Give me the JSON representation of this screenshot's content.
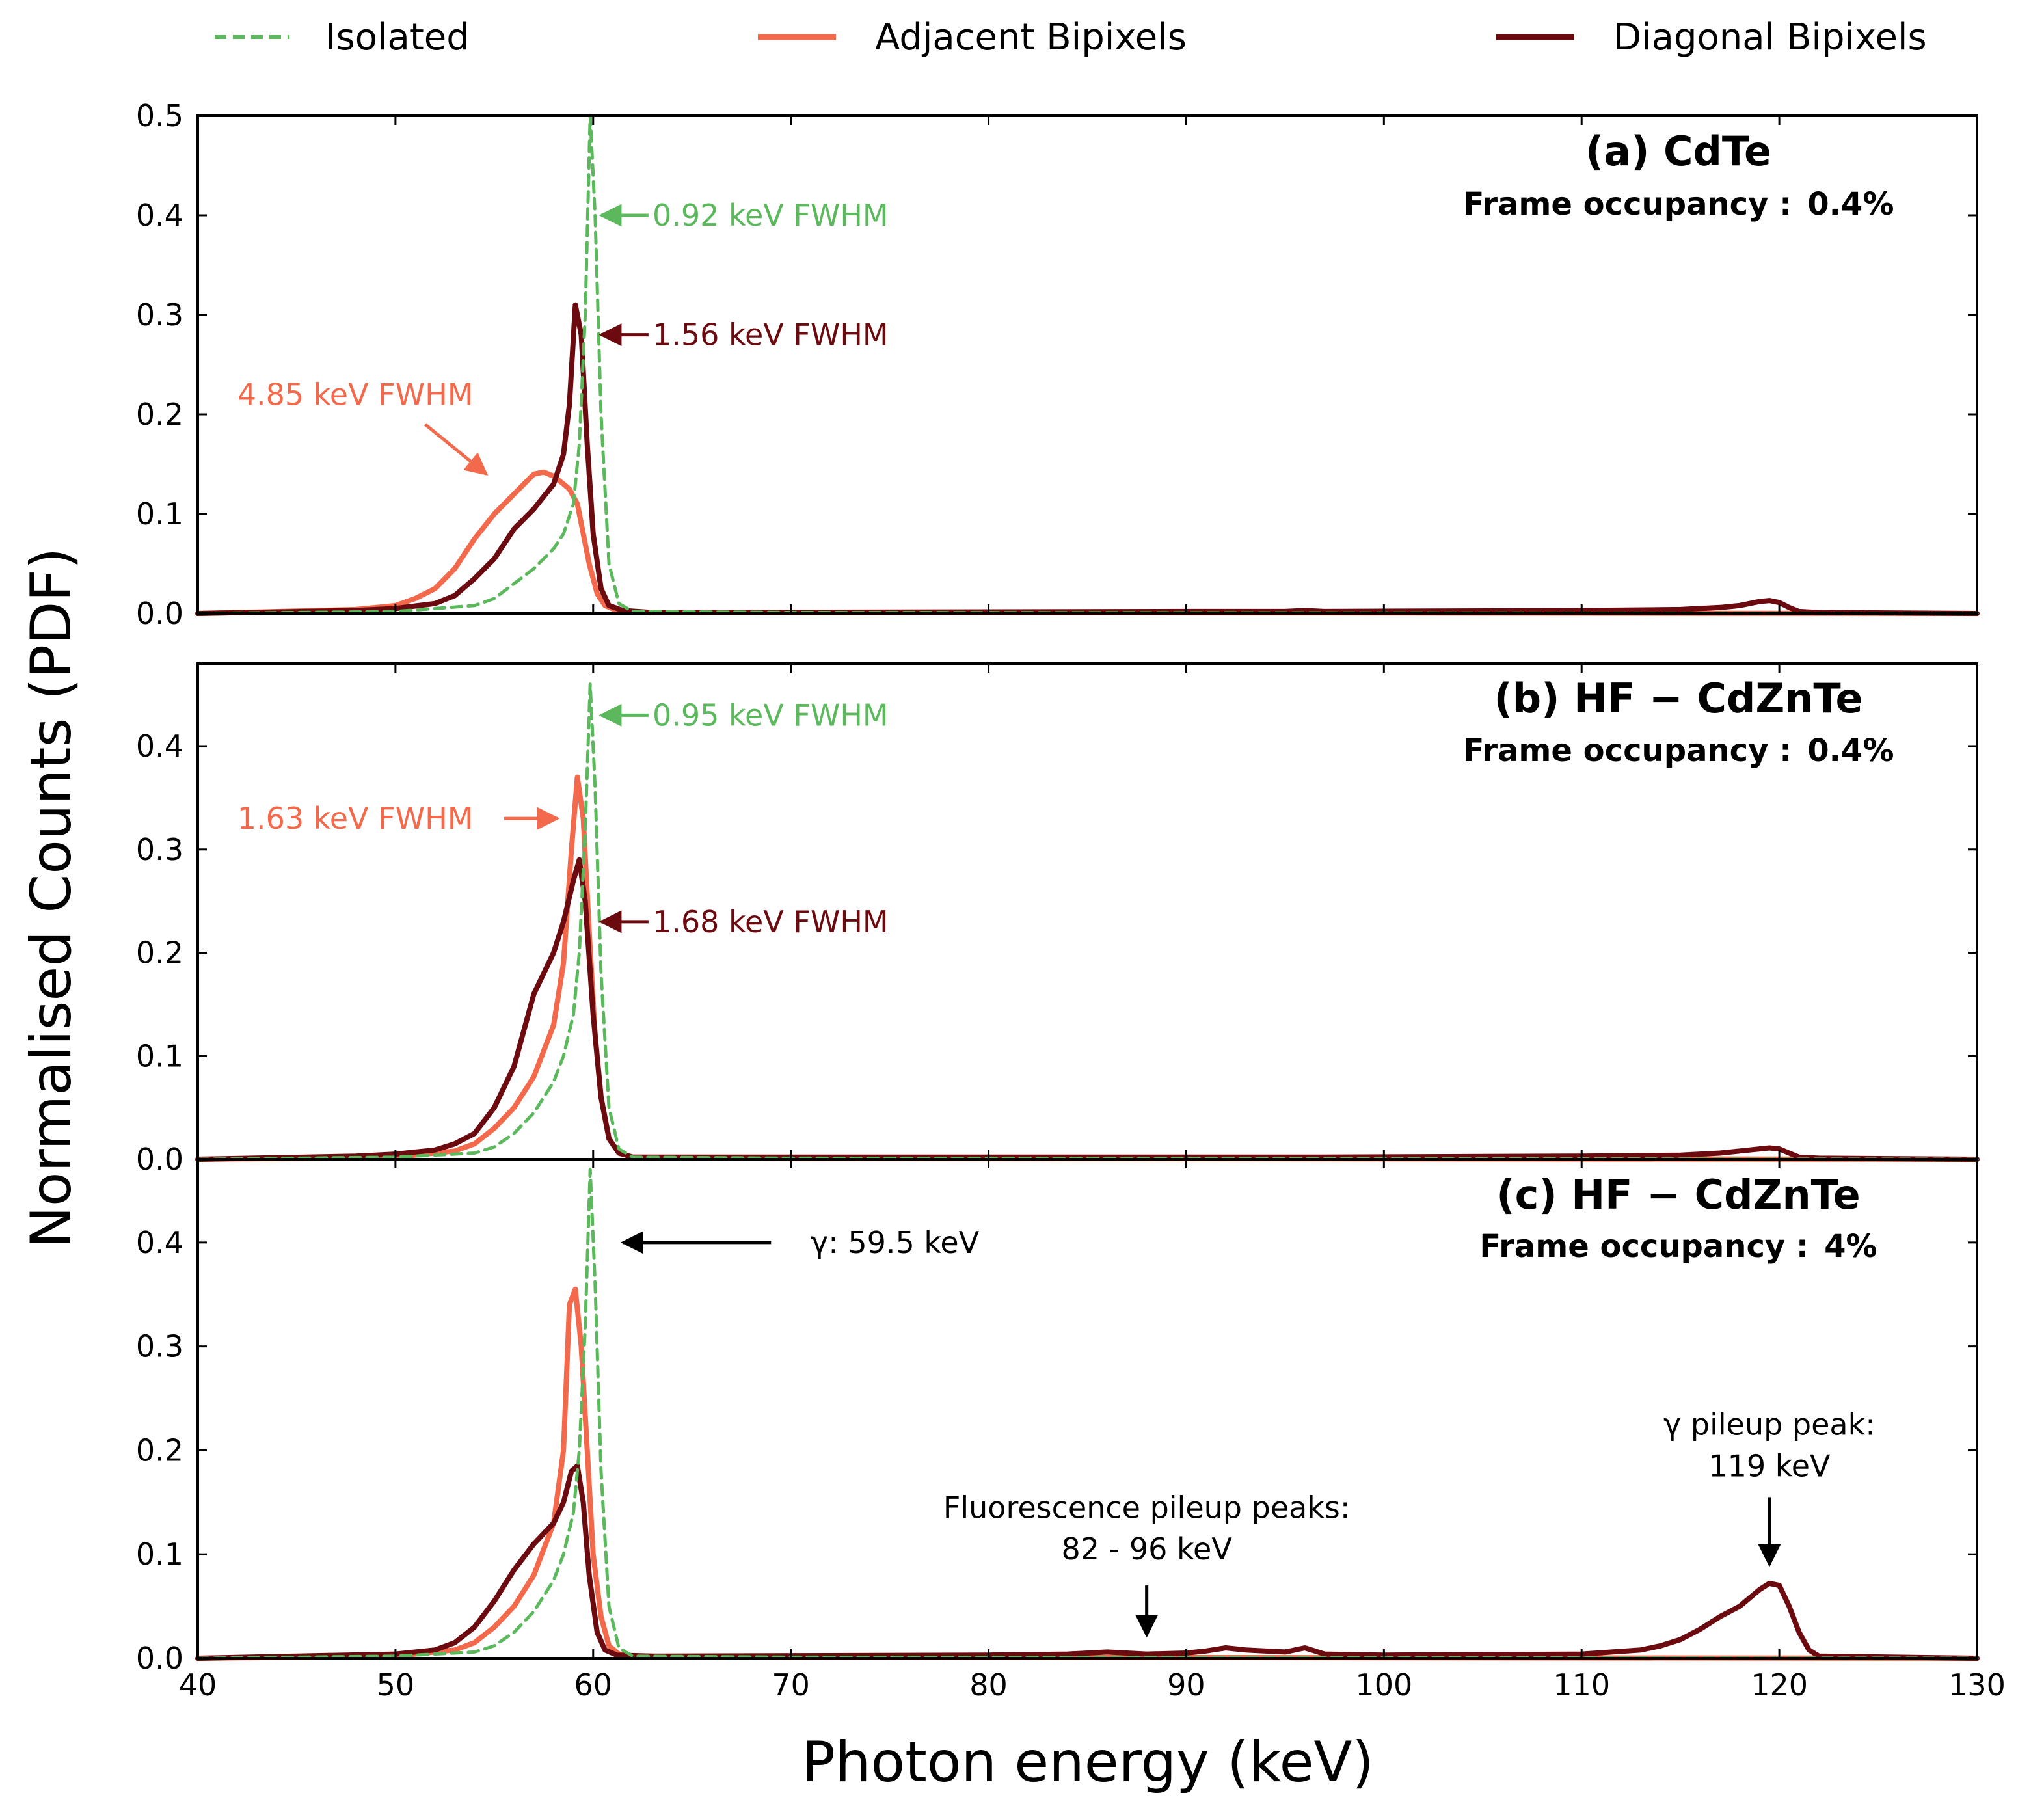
{
  "chart_data": {
    "type": "line",
    "xlabel": "Photon energy (keV)",
    "ylabel": "Normalised Counts (PDF)",
    "xlim": [
      40,
      130
    ],
    "x_ticks": [
      40,
      50,
      60,
      70,
      80,
      90,
      100,
      110,
      120,
      130
    ],
    "legend": {
      "placement": "top",
      "entries": [
        {
          "label": "Isolated",
          "color": "#5cb85c",
          "style": "dashed"
        },
        {
          "label": "Adjacent Bipixels",
          "color": "#f26a4b",
          "style": "solid"
        },
        {
          "label": "Diagonal Bipixels",
          "color": "#6b0a0f",
          "style": "solid"
        }
      ]
    },
    "panels": [
      {
        "id": "a",
        "title": "(a) CdTe",
        "occupancy_label": "Frame occupancy :",
        "occupancy_value": "0.4%",
        "ylim": [
          0,
          0.5
        ],
        "y_ticks": [
          "0.0",
          "0.1",
          "0.2",
          "0.3",
          "0.4",
          "0.5"
        ],
        "series": [
          {
            "name": "Isolated",
            "x": [
              40,
              50,
              54,
              55,
              56,
              57,
              58,
              58.5,
              59,
              59.3,
              59.6,
              59.85,
              60.1,
              60.4,
              60.8,
              61.3,
              62,
              70,
              130
            ],
            "y": [
              0,
              0.002,
              0.008,
              0.015,
              0.03,
              0.045,
              0.065,
              0.08,
              0.11,
              0.17,
              0.3,
              0.5,
              0.4,
              0.2,
              0.05,
              0.01,
              0.002,
              0.001,
              0
            ]
          },
          {
            "name": "Adjacent Bipixels",
            "x": [
              40,
              48,
              50,
              51,
              52,
              53,
              54,
              55,
              56,
              56.5,
              57,
              57.5,
              58,
              58.5,
              58.8,
              59.2,
              59.5,
              59.8,
              60.2,
              60.6,
              61.2,
              63,
              70,
              130
            ],
            "y": [
              0,
              0.004,
              0.008,
              0.015,
              0.025,
              0.045,
              0.075,
              0.1,
              0.12,
              0.13,
              0.14,
              0.142,
              0.138,
              0.13,
              0.125,
              0.11,
              0.08,
              0.05,
              0.02,
              0.008,
              0.003,
              0.001,
              0.001,
              0
            ]
          },
          {
            "name": "Diagonal Bipixels",
            "x": [
              40,
              48,
              50,
              52,
              53,
              54,
              55,
              56,
              57,
              58,
              58.5,
              58.8,
              59.1,
              59.4,
              59.7,
              60,
              60.4,
              60.8,
              61.5,
              63,
              90,
              95,
              96,
              97,
              110,
              115,
              117,
              118,
              119,
              119.5,
              120,
              120.5,
              121,
              122,
              130
            ],
            "y": [
              0,
              0.003,
              0.005,
              0.01,
              0.018,
              0.035,
              0.055,
              0.085,
              0.105,
              0.13,
              0.16,
              0.21,
              0.31,
              0.28,
              0.17,
              0.08,
              0.025,
              0.008,
              0.003,
              0.001,
              0.002,
              0.002,
              0.003,
              0.002,
              0.003,
              0.004,
              0.006,
              0.008,
              0.012,
              0.013,
              0.011,
              0.006,
              0.002,
              0.001,
              0
            ]
          }
        ],
        "annotations": [
          {
            "text": "0.92 keV FWHM",
            "color": "#5cb85c",
            "text_x": 63,
            "text_y": 0.4,
            "arrow_from": [
              62.8,
              0.4
            ],
            "arrow_to": [
              60.4,
              0.4
            ]
          },
          {
            "text": "1.56 keV FWHM",
            "color": "#6b0a0f",
            "text_x": 63,
            "text_y": 0.28,
            "arrow_from": [
              62.8,
              0.28
            ],
            "arrow_to": [
              60.4,
              0.28
            ]
          },
          {
            "text": "4.85 keV FWHM",
            "color": "#f26a4b",
            "text_x": 42,
            "text_y": 0.22,
            "arrow_from": [
              51.5,
              0.19
            ],
            "arrow_to": [
              54.6,
              0.14
            ]
          }
        ]
      },
      {
        "id": "b",
        "title": "(b) HF − CdZnTe",
        "occupancy_label": "Frame occupancy :",
        "occupancy_value": "0.4%",
        "ylim": [
          0,
          0.48
        ],
        "y_ticks": [
          "0.0",
          "0.1",
          "0.2",
          "0.3",
          "0.4"
        ],
        "series": [
          {
            "name": "Isolated",
            "x": [
              40,
              50,
              54,
              55,
              56,
              57,
              58,
              58.5,
              59,
              59.3,
              59.6,
              59.85,
              60.1,
              60.4,
              60.8,
              61.3,
              62,
              70,
              130
            ],
            "y": [
              0,
              0.002,
              0.006,
              0.012,
              0.025,
              0.045,
              0.075,
              0.1,
              0.14,
              0.2,
              0.32,
              0.46,
              0.36,
              0.18,
              0.05,
              0.01,
              0.002,
              0.001,
              0
            ]
          },
          {
            "name": "Adjacent Bipixels",
            "x": [
              40,
              50,
              53,
              54,
              55,
              56,
              57,
              58,
              58.5,
              58.9,
              59.2,
              59.5,
              59.8,
              60.1,
              60.4,
              60.8,
              61.3,
              62,
              70,
              130
            ],
            "y": [
              0,
              0.002,
              0.008,
              0.015,
              0.03,
              0.05,
              0.08,
              0.13,
              0.19,
              0.3,
              0.37,
              0.33,
              0.22,
              0.12,
              0.06,
              0.02,
              0.006,
              0.002,
              0.001,
              0
            ]
          },
          {
            "name": "Diagonal Bipixels",
            "x": [
              40,
              48,
              50,
              52,
              53,
              54,
              55,
              56,
              57,
              58,
              58.5,
              59,
              59.3,
              59.6,
              60,
              60.4,
              60.8,
              61.3,
              62,
              90,
              96,
              110,
              115,
              117,
              118,
              119,
              119.5,
              120,
              120.5,
              121,
              122,
              130
            ],
            "y": [
              0,
              0.003,
              0.005,
              0.009,
              0.015,
              0.025,
              0.05,
              0.09,
              0.16,
              0.2,
              0.23,
              0.27,
              0.29,
              0.25,
              0.14,
              0.06,
              0.02,
              0.006,
              0.002,
              0.002,
              0.002,
              0.003,
              0.004,
              0.006,
              0.008,
              0.01,
              0.011,
              0.01,
              0.006,
              0.002,
              0.001,
              0
            ]
          }
        ],
        "annotations": [
          {
            "text": "0.95 keV FWHM",
            "color": "#5cb85c",
            "text_x": 63,
            "text_y": 0.43,
            "arrow_from": [
              62.8,
              0.43
            ],
            "arrow_to": [
              60.4,
              0.43
            ]
          },
          {
            "text": "1.63 keV FWHM",
            "color": "#f26a4b",
            "text_x": 42,
            "text_y": 0.33,
            "arrow_from": [
              55.5,
              0.33
            ],
            "arrow_to": [
              58.2,
              0.33
            ]
          },
          {
            "text": "1.68 keV FWHM",
            "color": "#6b0a0f",
            "text_x": 63,
            "text_y": 0.23,
            "arrow_from": [
              62.8,
              0.23
            ],
            "arrow_to": [
              60.4,
              0.23
            ]
          }
        ]
      },
      {
        "id": "c",
        "title": "(c) HF − CdZnTe",
        "occupancy_label": "Frame occupancy :",
        "occupancy_value": "4%",
        "ylim": [
          0,
          0.48
        ],
        "y_ticks": [
          "0.0",
          "0.1",
          "0.2",
          "0.3",
          "0.4"
        ],
        "series": [
          {
            "name": "Isolated",
            "x": [
              40,
              50,
              54,
              55,
              56,
              57,
              58,
              58.5,
              59,
              59.3,
              59.6,
              59.85,
              60.1,
              60.4,
              60.8,
              61.3,
              62,
              70,
              130
            ],
            "y": [
              0,
              0.002,
              0.006,
              0.012,
              0.025,
              0.045,
              0.075,
              0.1,
              0.14,
              0.2,
              0.32,
              0.47,
              0.36,
              0.18,
              0.05,
              0.01,
              0.002,
              0.001,
              0
            ]
          },
          {
            "name": "Adjacent Bipixels",
            "x": [
              40,
              50,
              53,
              54,
              55,
              56,
              57,
              58,
              58.5,
              58.8,
              59.1,
              59.4,
              59.7,
              60,
              60.4,
              60.8,
              61.3,
              62,
              70,
              130
            ],
            "y": [
              0,
              0.002,
              0.008,
              0.015,
              0.03,
              0.05,
              0.08,
              0.13,
              0.2,
              0.34,
              0.355,
              0.3,
              0.2,
              0.1,
              0.04,
              0.012,
              0.004,
              0.002,
              0.001,
              0
            ]
          },
          {
            "name": "Diagonal Bipixels",
            "x": [
              40,
              50,
              52,
              53,
              54,
              55,
              56,
              57,
              58,
              58.5,
              58.9,
              59.2,
              59.5,
              59.8,
              60.2,
              60.6,
              61.2,
              63,
              80,
              84,
              86,
              88,
              90,
              91,
              92,
              93,
              95,
              96,
              97,
              100,
              110,
              113,
              114,
              115,
              116,
              117,
              118,
              118.5,
              119,
              119.5,
              120,
              120.5,
              121,
              121.5,
              122,
              130
            ],
            "y": [
              0,
              0.004,
              0.008,
              0.015,
              0.03,
              0.055,
              0.085,
              0.11,
              0.13,
              0.15,
              0.18,
              0.185,
              0.15,
              0.08,
              0.025,
              0.008,
              0.003,
              0.002,
              0.003,
              0.004,
              0.006,
              0.004,
              0.005,
              0.007,
              0.01,
              0.008,
              0.006,
              0.01,
              0.004,
              0.003,
              0.004,
              0.008,
              0.012,
              0.018,
              0.028,
              0.04,
              0.05,
              0.058,
              0.066,
              0.072,
              0.07,
              0.05,
              0.025,
              0.008,
              0.002,
              0
            ]
          }
        ],
        "annotations": [
          {
            "text": "γ: 59.5 keV",
            "color": "#000000",
            "text_x": 71,
            "text_y": 0.4,
            "arrow_from": [
              69,
              0.4
            ],
            "arrow_to": [
              61.5,
              0.4
            ]
          },
          {
            "text": "Fluorescence pileup peaks:",
            "color": "#000000",
            "text_x": 88,
            "text_y": 0.145,
            "arrow_from": null,
            "arrow_to": null
          },
          {
            "text": "82 - 96 keV",
            "color": "#000000",
            "text_x": 88,
            "text_y": 0.105,
            "arrow_from": [
              88,
              0.07
            ],
            "arrow_to": [
              88,
              0.022
            ]
          },
          {
            "text": "γ pileup peak:",
            "color": "#000000",
            "text_x": 119.5,
            "text_y": 0.225,
            "arrow_from": null,
            "arrow_to": null
          },
          {
            "text": "119 keV",
            "color": "#000000",
            "text_x": 119.5,
            "text_y": 0.185,
            "arrow_from": [
              119.5,
              0.155
            ],
            "arrow_to": [
              119.5,
              0.09
            ]
          }
        ]
      }
    ]
  }
}
